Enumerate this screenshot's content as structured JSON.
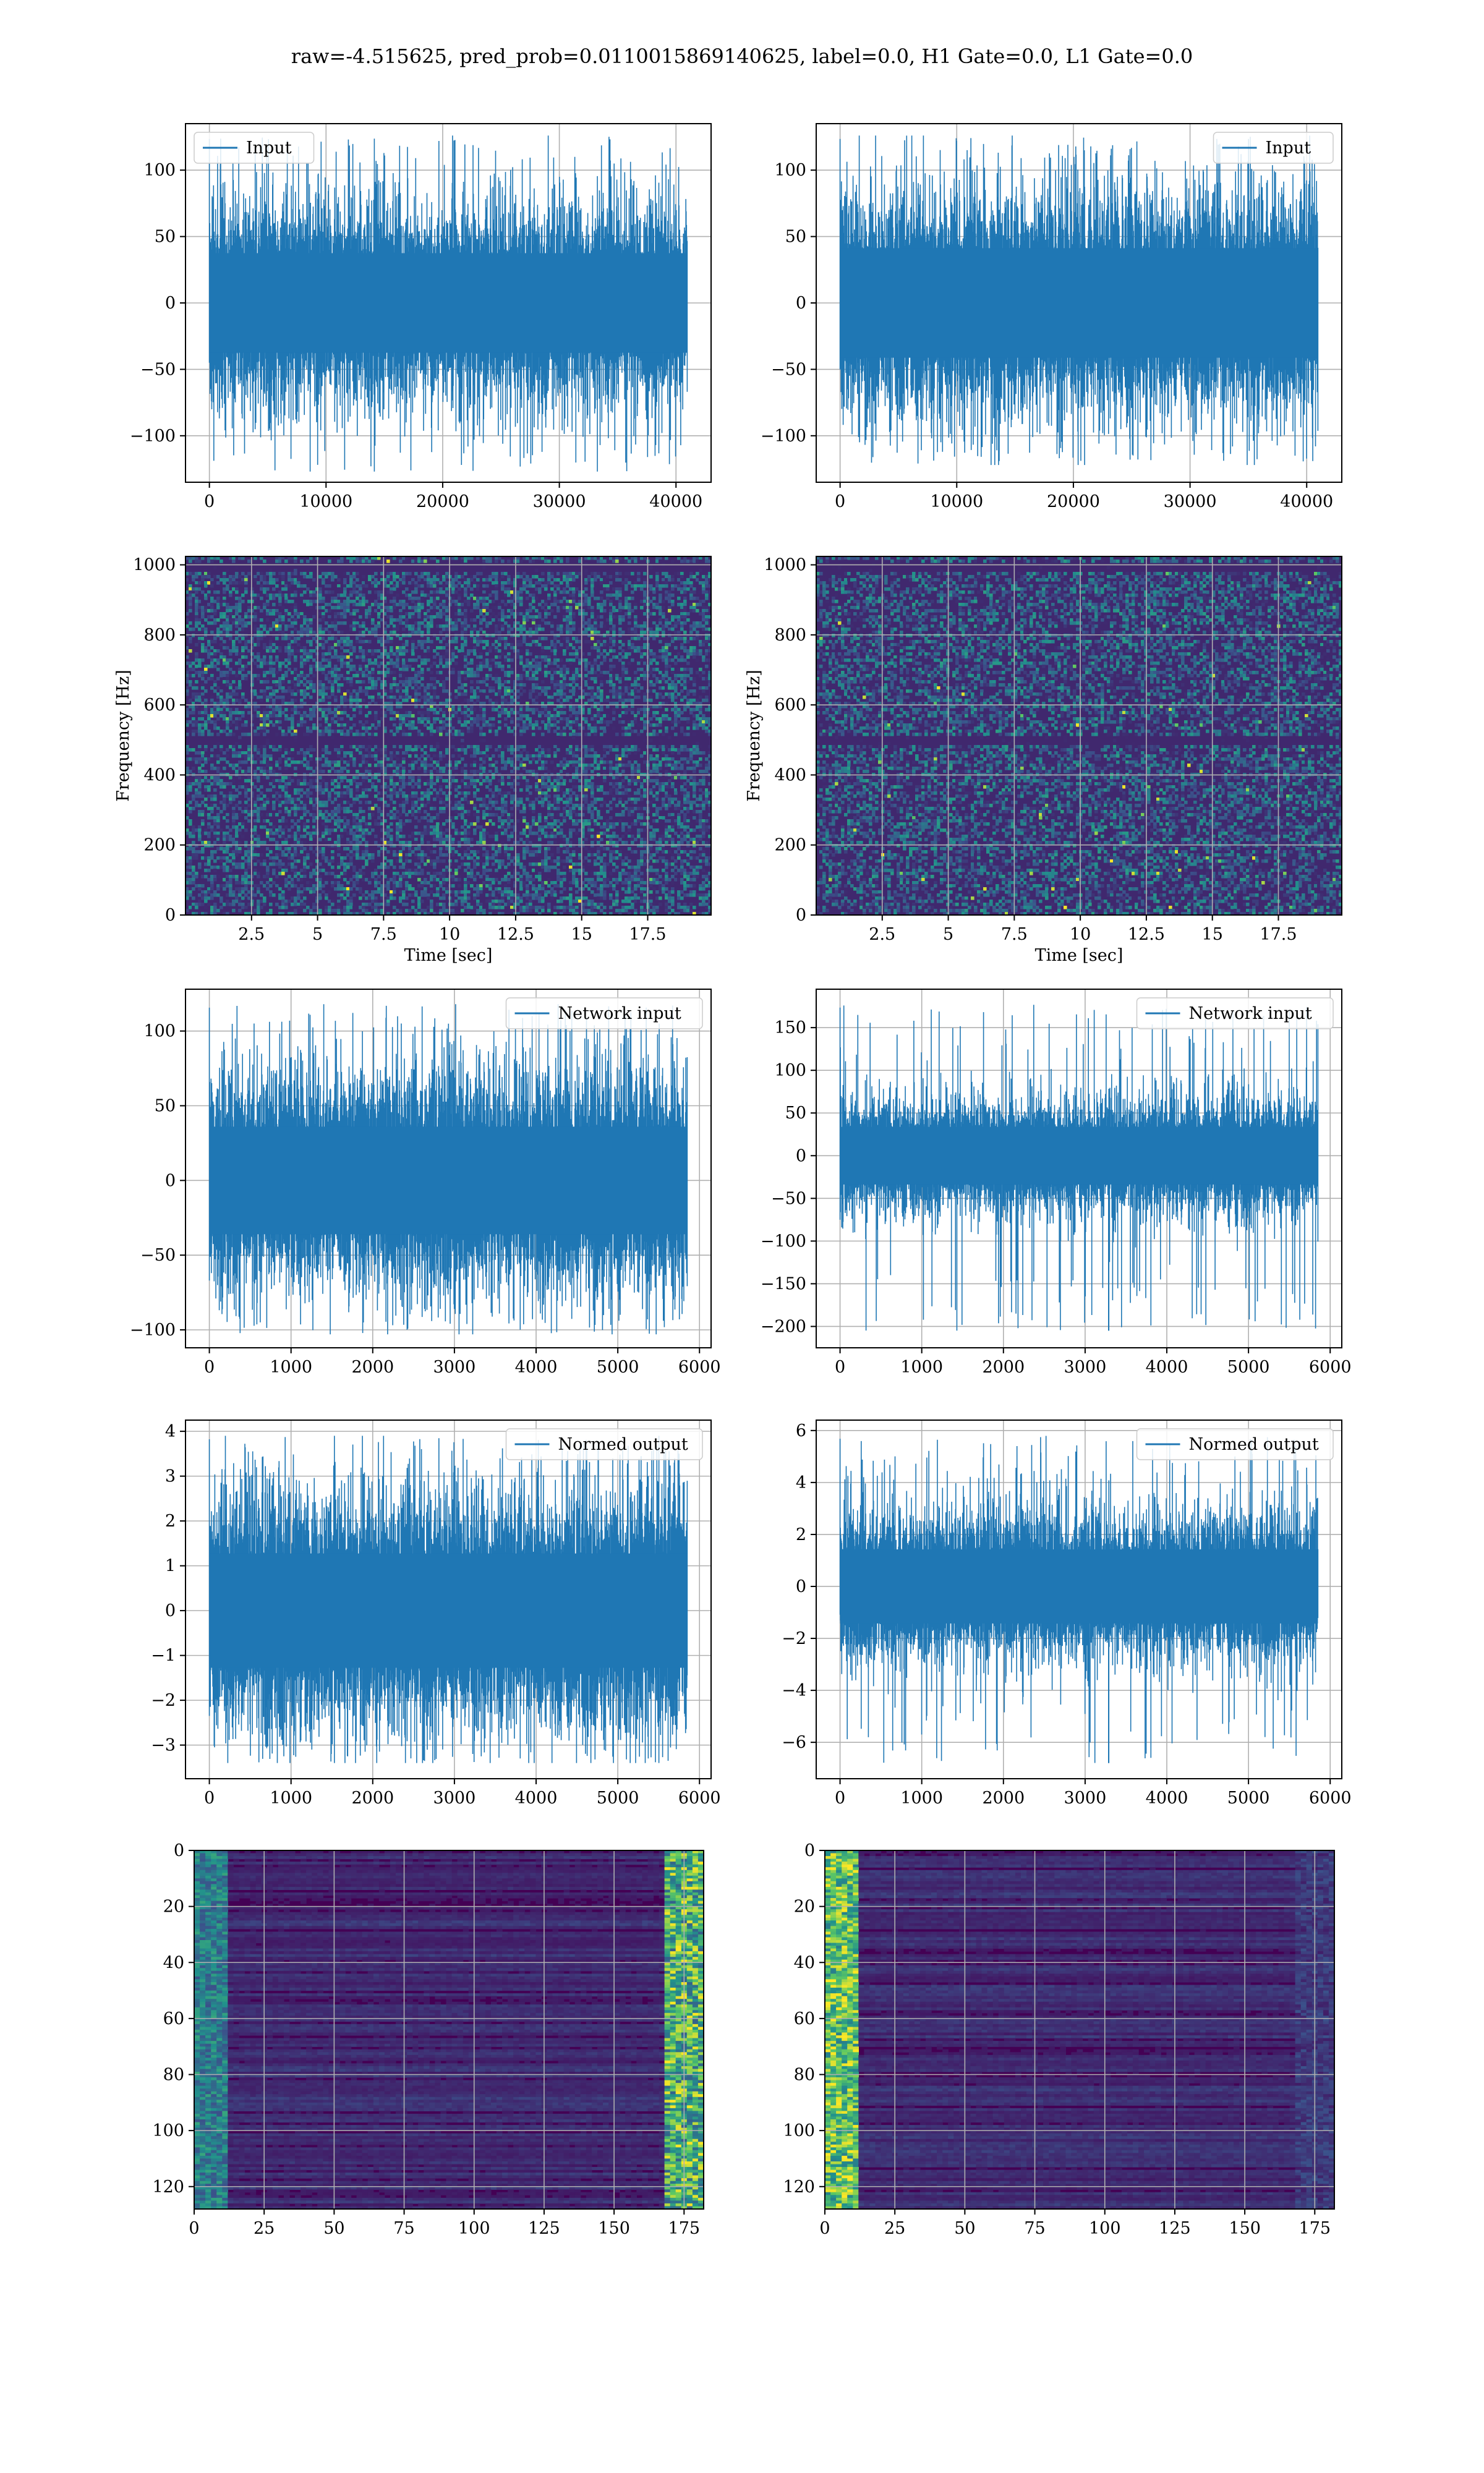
{
  "figure": {
    "title": "raw=-4.515625, pred_prob=0.0110015869140625, label=0.0, H1 Gate=0.0, L1 Gate=0.0"
  },
  "colors": {
    "line": "#1f77b4",
    "grid": "#b0b0b0",
    "viridis_dark": "#440154",
    "viridis_mid": "#21918c",
    "viridis_light": "#fde725"
  },
  "chart_data": [
    {
      "id": "input_h1",
      "type": "line",
      "title": "",
      "xlabel": "",
      "ylabel": "",
      "legend": "top-left",
      "grid": true,
      "series": [
        {
          "name": "Input",
          "n_samples": 40960,
          "value_range": [
            -127,
            126
          ],
          "typical_amplitude": 50
        }
      ],
      "xlim": [
        -2048,
        43008
      ],
      "ylim": [
        -135,
        135
      ],
      "xticks": [
        0,
        10000,
        20000,
        30000,
        40000
      ],
      "yticks": [
        -100,
        -50,
        0,
        50,
        100
      ]
    },
    {
      "id": "input_l1",
      "type": "line",
      "title": "",
      "xlabel": "",
      "ylabel": "",
      "legend": "top-right",
      "grid": true,
      "series": [
        {
          "name": "Input",
          "n_samples": 40960,
          "value_range": [
            -122,
            126
          ],
          "typical_amplitude": 55
        }
      ],
      "xlim": [
        -2048,
        43008
      ],
      "ylim": [
        -135,
        135
      ],
      "xticks": [
        0,
        10000,
        20000,
        30000,
        40000
      ],
      "yticks": [
        -100,
        -50,
        0,
        50,
        100
      ]
    },
    {
      "id": "spec_h1",
      "type": "heatmap",
      "title": "",
      "xlabel": "Time [sec]",
      "ylabel": "Frequency [Hz]",
      "grid": true,
      "colormap": "viridis",
      "xlim": [
        0,
        19.9
      ],
      "ylim": [
        0,
        1024
      ],
      "xticks": [
        2.5,
        5.0,
        7.5,
        10.0,
        12.5,
        15.0,
        17.5
      ],
      "yticks": [
        0,
        200,
        400,
        600,
        800,
        1000
      ],
      "dark_bands_hz": [
        500,
        990
      ]
    },
    {
      "id": "spec_l1",
      "type": "heatmap",
      "title": "",
      "xlabel": "Time [sec]",
      "ylabel": "Frequency [Hz]",
      "grid": true,
      "colormap": "viridis",
      "xlim": [
        0,
        19.9
      ],
      "ylim": [
        0,
        1024
      ],
      "xticks": [
        2.5,
        5.0,
        7.5,
        10.0,
        12.5,
        15.0,
        17.5
      ],
      "yticks": [
        0,
        200,
        400,
        600,
        800,
        1000
      ],
      "dark_bands_hz": [
        500,
        990
      ]
    },
    {
      "id": "net_h1",
      "type": "line",
      "title": "",
      "xlabel": "",
      "ylabel": "",
      "legend": "top-right",
      "grid": true,
      "series": [
        {
          "name": "Network input",
          "n_samples": 5850,
          "value_range": [
            -103,
            118
          ],
          "typical_amplitude": 48
        }
      ],
      "xlim": [
        -292,
        6142
      ],
      "ylim": [
        -112,
        128
      ],
      "xticks": [
        0,
        1000,
        2000,
        3000,
        4000,
        5000,
        6000
      ],
      "yticks": [
        -100,
        -50,
        0,
        50,
        100
      ]
    },
    {
      "id": "net_l1",
      "type": "line",
      "title": "",
      "xlabel": "",
      "ylabel": "",
      "legend": "top-right",
      "grid": true,
      "series": [
        {
          "name": "Network input",
          "n_samples": 5850,
          "value_range": [
            -205,
            177
          ],
          "typical_amplitude": 45,
          "spike_at": 3290
        }
      ],
      "xlim": [
        -292,
        6142
      ],
      "ylim": [
        -225,
        195
      ],
      "xticks": [
        0,
        1000,
        2000,
        3000,
        4000,
        5000,
        6000
      ],
      "yticks": [
        -200,
        -150,
        -100,
        -50,
        0,
        50,
        100,
        150
      ]
    },
    {
      "id": "norm_h1",
      "type": "line",
      "title": "",
      "xlabel": "",
      "ylabel": "",
      "legend": "top-right",
      "grid": true,
      "series": [
        {
          "name": "Normed output",
          "n_samples": 5850,
          "value_range": [
            -3.4,
            3.9
          ],
          "typical_amplitude": 1.7
        }
      ],
      "xlim": [
        -292,
        6142
      ],
      "ylim": [
        -3.75,
        4.25
      ],
      "xticks": [
        0,
        1000,
        2000,
        3000,
        4000,
        5000,
        6000
      ],
      "yticks": [
        -3,
        -2,
        -1,
        0,
        1,
        2,
        3,
        4
      ]
    },
    {
      "id": "norm_l1",
      "type": "line",
      "title": "",
      "xlabel": "",
      "ylabel": "",
      "legend": "top-right",
      "grid": true,
      "series": [
        {
          "name": "Normed output",
          "n_samples": 5850,
          "value_range": [
            -6.8,
            5.8
          ],
          "typical_amplitude": 1.9,
          "spike_at": 3290
        }
      ],
      "xlim": [
        -292,
        6142
      ],
      "ylim": [
        -7.4,
        6.4
      ],
      "xticks": [
        0,
        1000,
        2000,
        3000,
        4000,
        5000,
        6000
      ],
      "yticks": [
        -6,
        -4,
        -2,
        0,
        2,
        4,
        6
      ]
    },
    {
      "id": "feat_h1",
      "type": "heatmap",
      "title": "",
      "xlabel": "",
      "ylabel": "",
      "grid": true,
      "colormap": "viridis",
      "rows": 128,
      "cols": 182,
      "xlim": [
        0,
        182
      ],
      "ylim": [
        128,
        0
      ],
      "xticks": [
        0,
        25,
        50,
        75,
        100,
        125,
        150,
        175
      ],
      "yticks": [
        0,
        20,
        40,
        60,
        80,
        100,
        120
      ]
    },
    {
      "id": "feat_l1",
      "type": "heatmap",
      "title": "",
      "xlabel": "",
      "ylabel": "",
      "grid": true,
      "colormap": "viridis",
      "rows": 128,
      "cols": 182,
      "xlim": [
        0,
        182
      ],
      "ylim": [
        128,
        0
      ],
      "xticks": [
        0,
        25,
        50,
        75,
        100,
        125,
        150,
        175
      ],
      "yticks": [
        0,
        20,
        40,
        60,
        80,
        100,
        120
      ]
    }
  ]
}
